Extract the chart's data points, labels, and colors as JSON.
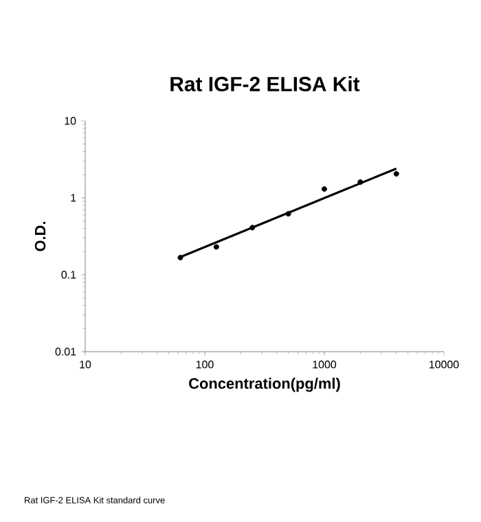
{
  "chart_data": {
    "type": "scatter",
    "title": "Rat IGF-2 ELISA Kit",
    "xlabel": "Concentration(pg/ml)",
    "ylabel": "O.D.",
    "annotations": [
      "Rat IGF-2 ELISA Kit standard curve"
    ],
    "log": "xy",
    "grid": false,
    "xlim": [
      10,
      10000
    ],
    "xticks": [
      10,
      100,
      1000,
      10000
    ],
    "ylim": [
      0.01,
      10
    ],
    "yticks": [
      0.01,
      0.1,
      1,
      10
    ],
    "series": [
      {
        "color": "#000000",
        "x": [
          62.5,
          125,
          250,
          500,
          1000,
          2000,
          4000
        ],
        "values": [
          0.167,
          0.23,
          0.41,
          0.62,
          1.3,
          1.6,
          2.05
        ]
      },
      {
        "type": "line",
        "color": "#000000",
        "line_style": "solid",
        "x": [
          62.5,
          4000
        ],
        "values": [
          0.17,
          2.4
        ]
      }
    ]
  }
}
